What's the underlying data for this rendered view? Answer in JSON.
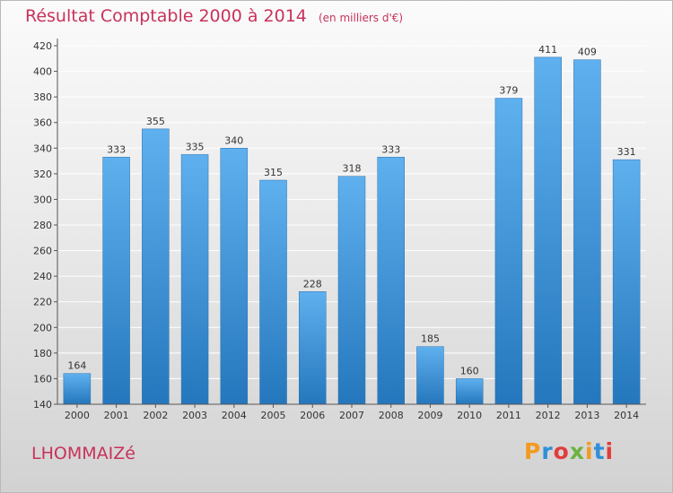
{
  "chart_data": {
    "type": "bar",
    "title": "Résultat Comptable 2000 à 2014",
    "subtitle": "(en milliers d'€)",
    "categories": [
      "2000",
      "2001",
      "2002",
      "2003",
      "2004",
      "2005",
      "2006",
      "2007",
      "2008",
      "2009",
      "2010",
      "2011",
      "2012",
      "2013",
      "2014"
    ],
    "values": [
      164,
      333,
      355,
      335,
      340,
      315,
      228,
      318,
      333,
      185,
      160,
      379,
      411,
      409,
      331
    ],
    "ylim": [
      140,
      420
    ],
    "yticks": [
      140,
      160,
      180,
      200,
      220,
      240,
      260,
      280,
      300,
      320,
      340,
      360,
      380,
      400,
      420
    ],
    "grid": true,
    "bar_color": "#3f97df"
  },
  "commune": "LHOMMAIZé",
  "logo": {
    "letters": [
      "P",
      "r",
      "o",
      "x",
      "i",
      "t",
      "i"
    ],
    "colors": [
      "#f39a1e",
      "#2f8fd8",
      "#e23d3d",
      "#6cb33f",
      "#f39a1e",
      "#2f8fd8",
      "#e23d3d"
    ]
  }
}
